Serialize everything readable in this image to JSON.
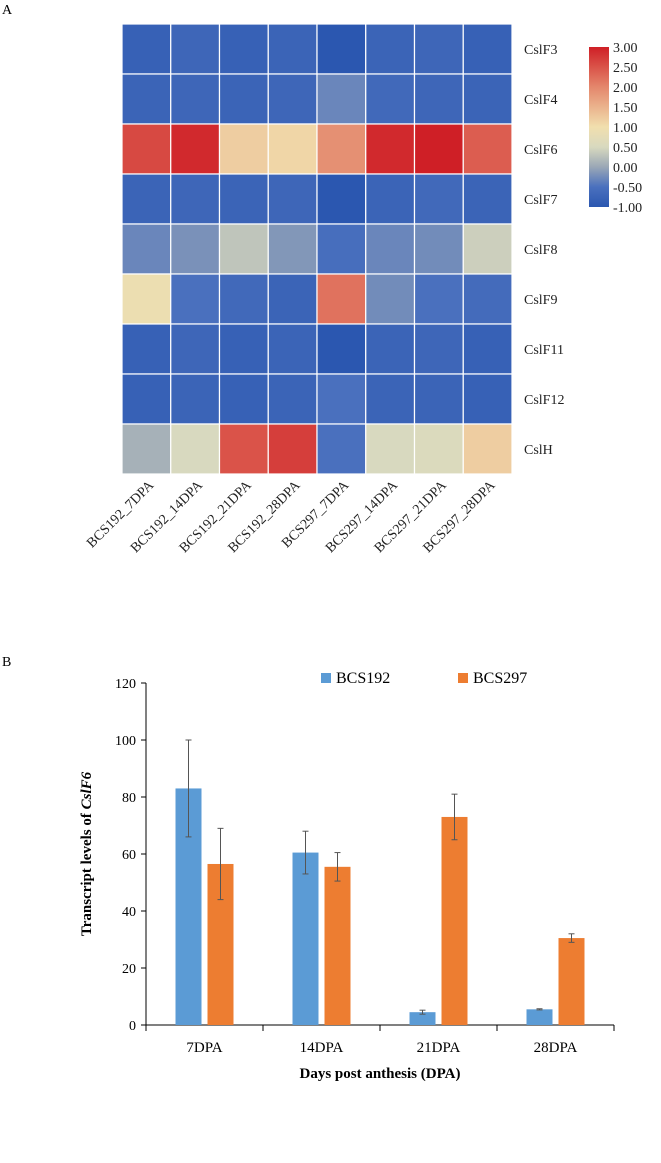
{
  "chart_data": [
    {
      "panel_label": "A",
      "type": "heatmap",
      "columns": [
        "BCS192_7DPA",
        "BCS192_14DPA",
        "BCS192_21DPA",
        "BCS192_28DPA",
        "BCS297_7DPA",
        "BCS297_14DPA",
        "BCS297_21DPA",
        "BCS297_28DPA"
      ],
      "rows": [
        "CslF3",
        "CslF4",
        "CslF6",
        "CslF7",
        "CslF8",
        "CslF9",
        "CslF11",
        "CslF12",
        "CslH"
      ],
      "values": [
        [
          -0.8,
          -0.7,
          -0.8,
          -0.75,
          -1.0,
          -0.75,
          -0.7,
          -0.8
        ],
        [
          -0.75,
          -0.7,
          -0.75,
          -0.7,
          -0.3,
          -0.65,
          -0.7,
          -0.75
        ],
        [
          2.6,
          2.9,
          1.2,
          1.1,
          1.9,
          2.9,
          3.0,
          2.4
        ],
        [
          -0.75,
          -0.7,
          -0.75,
          -0.7,
          -1.0,
          -0.75,
          -0.65,
          -0.75
        ],
        [
          -0.3,
          -0.2,
          0.3,
          -0.15,
          -0.55,
          -0.3,
          -0.25,
          0.4
        ],
        [
          0.9,
          -0.5,
          -0.65,
          -0.75,
          2.2,
          -0.25,
          -0.5,
          -0.6
        ],
        [
          -0.8,
          -0.7,
          -0.8,
          -0.75,
          -1.0,
          -0.75,
          -0.7,
          -0.8
        ],
        [
          -0.8,
          -0.75,
          -0.8,
          -0.75,
          -0.5,
          -0.75,
          -0.75,
          -0.8
        ],
        [
          0.1,
          0.5,
          2.5,
          2.7,
          -0.5,
          0.5,
          0.55,
          1.2
        ]
      ],
      "color_scale": {
        "ticks": [
          "3.00",
          "2.50",
          "2.00",
          "1.50",
          "1.00",
          "0.50",
          "0.00",
          "-0.50",
          "-1.00"
        ],
        "min": -1.0,
        "max": 3.0,
        "stops": [
          {
            "value": -1.0,
            "color": "#2b57b0"
          },
          {
            "value": -0.5,
            "color": "#4a70be"
          },
          {
            "value": 0.0,
            "color": "#9aa7b6"
          },
          {
            "value": 0.5,
            "color": "#d8d9bf"
          },
          {
            "value": 1.0,
            "color": "#f1dfae"
          },
          {
            "value": 2.0,
            "color": "#e4876c"
          },
          {
            "value": 3.0,
            "color": "#cf1f26"
          }
        ]
      },
      "grid_line_color": "#ffffff"
    },
    {
      "panel_label": "B",
      "type": "bar",
      "categories": [
        "7DPA",
        "14DPA",
        "21DPA",
        "28DPA"
      ],
      "series": [
        {
          "name": "BCS192",
          "color": "#5b9bd5",
          "values": [
            83,
            60.5,
            4.5,
            5.5
          ],
          "errors": [
            17,
            7.5,
            0.7,
            0.2
          ]
        },
        {
          "name": "BCS297",
          "color": "#ed7d31",
          "values": [
            56.5,
            55.5,
            73,
            30.5
          ],
          "errors": [
            12.5,
            5,
            8,
            1.5
          ]
        }
      ],
      "xlabel": "Days post anthesis (DPA)",
      "ylabel_prefix": "Transcript levels of ",
      "ylabel_italic": "CslF6",
      "ylim": [
        0,
        120
      ],
      "yticks": [
        0,
        20,
        40,
        60,
        80,
        100,
        120
      ],
      "grid": false,
      "legend_position": "top-center"
    }
  ]
}
